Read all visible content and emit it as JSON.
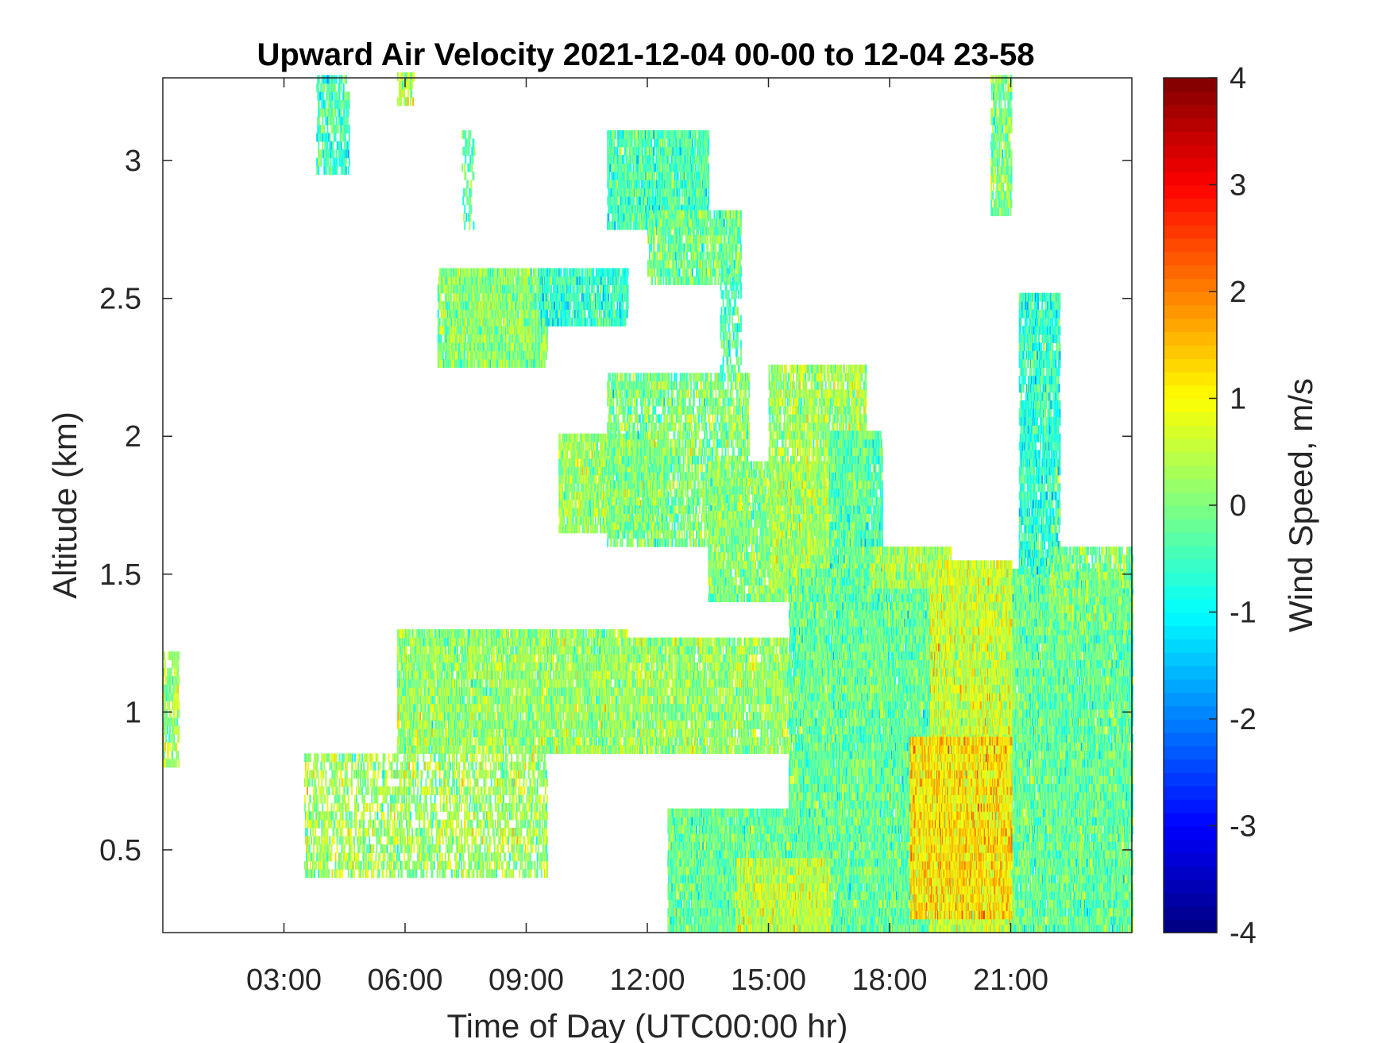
{
  "chart_data": {
    "type": "heatmap",
    "title": "Upward Air Velocity 2021-12-04 00-00 to 12-04 23-58",
    "xlabel": "Time of Day (UTC00:00 hr)",
    "ylabel": "Altitude (km)",
    "colorbar_label": "Wind Speed, m/s",
    "x_unit": "hours UTC",
    "xlim": [
      0,
      24
    ],
    "ylim": [
      0.2,
      3.3
    ],
    "clim": [
      -4,
      4
    ],
    "colormap": "jet",
    "x_ticks": [
      3,
      6,
      9,
      12,
      15,
      18,
      21
    ],
    "x_tick_labels": [
      "03:00",
      "06:00",
      "09:00",
      "12:00",
      "15:00",
      "18:00",
      "21:00"
    ],
    "y_ticks": [
      0.5,
      1,
      1.5,
      2,
      2.5,
      3
    ],
    "y_tick_labels": [
      "0.5",
      "1",
      "1.5",
      "2",
      "2.5",
      "3"
    ],
    "colorbar_ticks": [
      -4,
      -3,
      -2,
      -1,
      0,
      1,
      2,
      3,
      4
    ],
    "colorbar_tick_labels": [
      "-4",
      "-3",
      "-2",
      "-1",
      "0",
      "1",
      "2",
      "3",
      "4"
    ],
    "background_color": "#ffffff",
    "regions": [
      {
        "x": [
          0.0,
          0.4
        ],
        "y": [
          0.8,
          1.2
        ],
        "density": 0.55,
        "mean": 0.2
      },
      {
        "x": [
          3.8,
          4.6
        ],
        "y": [
          2.95,
          3.3
        ],
        "density": 0.55,
        "mean": -0.5
      },
      {
        "x": [
          5.8,
          6.2
        ],
        "y": [
          3.2,
          3.3
        ],
        "density": 0.6,
        "mean": 0.3
      },
      {
        "x": [
          7.4,
          7.7
        ],
        "y": [
          2.75,
          3.1
        ],
        "density": 0.3,
        "mean": -0.3
      },
      {
        "x": [
          6.8,
          9.5
        ],
        "y": [
          2.25,
          2.6
        ],
        "density": 0.85,
        "mean": 0.1
      },
      {
        "x": [
          9.3,
          11.5
        ],
        "y": [
          2.4,
          2.6
        ],
        "density": 0.75,
        "mean": -0.6
      },
      {
        "x": [
          11.0,
          13.5
        ],
        "y": [
          2.75,
          3.1
        ],
        "density": 0.8,
        "mean": -0.4
      },
      {
        "x": [
          12.0,
          14.3
        ],
        "y": [
          2.55,
          2.8
        ],
        "density": 0.7,
        "mean": -0.1
      },
      {
        "x": [
          13.8,
          14.3
        ],
        "y": [
          2.2,
          2.6
        ],
        "density": 0.4,
        "mean": -0.4
      },
      {
        "x": [
          9.8,
          12.5
        ],
        "y": [
          1.65,
          2.0
        ],
        "density": 0.8,
        "mean": 0.2
      },
      {
        "x": [
          11.0,
          14.5
        ],
        "y": [
          1.6,
          2.2
        ],
        "density": 0.6,
        "mean": 0.0
      },
      {
        "x": [
          13.5,
          16.5
        ],
        "y": [
          1.4,
          1.9
        ],
        "density": 0.75,
        "mean": 0.1
      },
      {
        "x": [
          15.0,
          17.4
        ],
        "y": [
          1.45,
          2.25
        ],
        "density": 0.7,
        "mean": 0.3
      },
      {
        "x": [
          16.5,
          17.8
        ],
        "y": [
          1.3,
          2.0
        ],
        "density": 0.8,
        "mean": -0.3
      },
      {
        "x": [
          5.8,
          11.5
        ],
        "y": [
          0.85,
          1.3
        ],
        "density": 0.8,
        "mean": 0.2
      },
      {
        "x": [
          11.5,
          15.5
        ],
        "y": [
          0.85,
          1.25
        ],
        "density": 0.75,
        "mean": 0.2
      },
      {
        "x": [
          3.5,
          9.5
        ],
        "y": [
          0.4,
          0.85
        ],
        "density": 0.45,
        "mean": 0.3
      },
      {
        "x": [
          15.5,
          24.0
        ],
        "y": [
          0.2,
          1.5
        ],
        "density": 0.92,
        "mean": -0.2
      },
      {
        "x": [
          17.5,
          19.5
        ],
        "y": [
          1.45,
          1.6
        ],
        "density": 0.8,
        "mean": 0.3
      },
      {
        "x": [
          19.0,
          21.0
        ],
        "y": [
          0.2,
          1.55
        ],
        "density": 0.9,
        "mean": 0.6
      },
      {
        "x": [
          18.5,
          21.0
        ],
        "y": [
          0.25,
          0.9
        ],
        "density": 0.9,
        "mean": 1.2
      },
      {
        "x": [
          12.5,
          16.0
        ],
        "y": [
          0.2,
          0.65
        ],
        "density": 0.92,
        "mean": -0.2
      },
      {
        "x": [
          14.2,
          16.5
        ],
        "y": [
          0.2,
          0.45
        ],
        "density": 0.9,
        "mean": 0.5
      },
      {
        "x": [
          21.2,
          22.2
        ],
        "y": [
          1.5,
          2.5
        ],
        "density": 0.75,
        "mean": -0.6
      },
      {
        "x": [
          22.0,
          24.0
        ],
        "y": [
          1.3,
          1.6
        ],
        "density": 0.6,
        "mean": 0.0
      },
      {
        "x": [
          20.5,
          21.0
        ],
        "y": [
          2.8,
          3.3
        ],
        "density": 0.65,
        "mean": 0.0
      }
    ]
  }
}
